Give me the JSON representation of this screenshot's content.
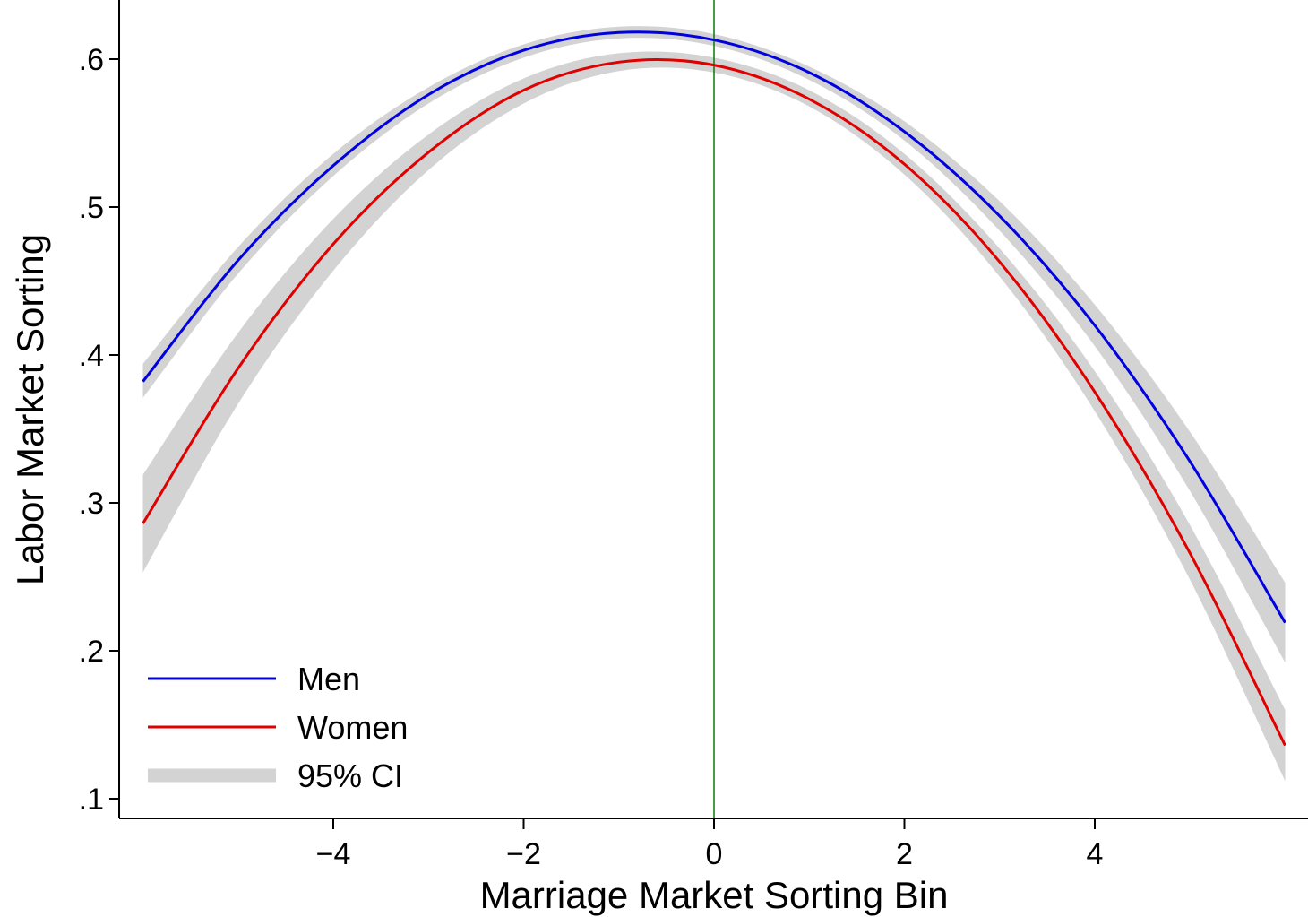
{
  "chart_data": {
    "type": "line",
    "title": "",
    "xlabel": "Marriage Market Sorting Bin",
    "ylabel": "Labor Market Sorting",
    "xlim": [
      -6.24,
      6.24
    ],
    "ylim": [
      0.087,
      0.64
    ],
    "x_ticks": [
      -4,
      -2,
      0,
      2,
      4
    ],
    "x_tick_labels": [
      "−4",
      "−2",
      "0",
      "2",
      "4"
    ],
    "y_ticks": [
      0.6,
      0.5,
      0.4,
      0.3,
      0.2,
      0.1
    ],
    "y_tick_labels": [
      ".6",
      ".5",
      ".4",
      ".3",
      ".2",
      ".1"
    ],
    "grid": false,
    "reference_line": {
      "x": 0,
      "color": "#0a7a0a"
    },
    "legend": {
      "placement": "bottom-left",
      "ci_label": "95% CI"
    },
    "x": [
      -6,
      -5,
      -4,
      -3,
      -2,
      -1,
      0,
      1,
      2,
      3,
      4,
      5,
      6
    ],
    "series": [
      {
        "name": "Men",
        "color": "#0000e0",
        "values": [
          0.382,
          0.464,
          0.528,
          0.576,
          0.606,
          0.618,
          0.613,
          0.591,
          0.551,
          0.494,
          0.42,
          0.328,
          0.219
        ],
        "ci_lower": [
          0.371,
          0.455,
          0.521,
          0.57,
          0.601,
          0.614,
          0.609,
          0.586,
          0.545,
          0.484,
          0.406,
          0.308,
          0.192
        ],
        "ci_upper": [
          0.394,
          0.473,
          0.536,
          0.581,
          0.61,
          0.622,
          0.617,
          0.595,
          0.558,
          0.504,
          0.434,
          0.348,
          0.246
        ]
      },
      {
        "name": "Women",
        "color": "#e00000",
        "values": [
          0.286,
          0.391,
          0.475,
          0.537,
          0.579,
          0.598,
          0.596,
          0.573,
          0.529,
          0.463,
          0.375,
          0.266,
          0.136
        ],
        "ci_lower": [
          0.253,
          0.367,
          0.457,
          0.525,
          0.57,
          0.592,
          0.591,
          0.568,
          0.522,
          0.453,
          0.362,
          0.248,
          0.112
        ],
        "ci_upper": [
          0.319,
          0.415,
          0.492,
          0.549,
          0.587,
          0.604,
          0.601,
          0.579,
          0.536,
          0.472,
          0.389,
          0.285,
          0.16
        ]
      }
    ],
    "ci_color": "#d3d3d3"
  }
}
